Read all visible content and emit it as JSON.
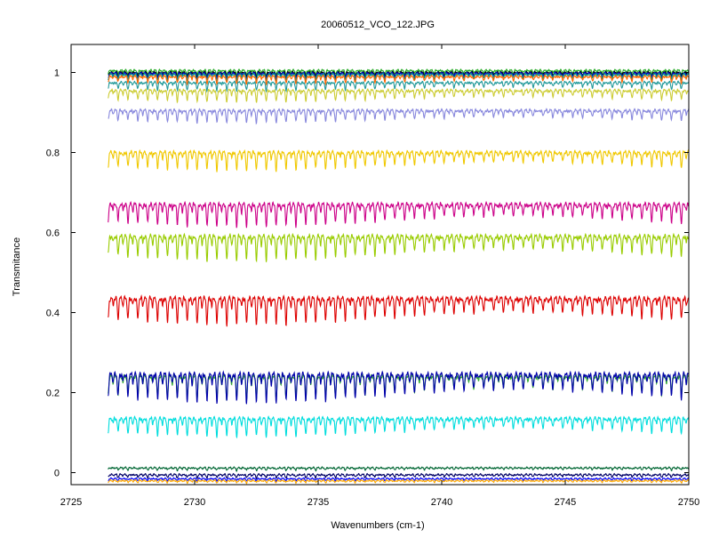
{
  "chart_data": {
    "type": "line",
    "title": "20060512_VCO_122.JPG",
    "xlabel": "Wavenumbers (cm-1)",
    "ylabel": "Transmitance",
    "xlim": [
      2725,
      2750
    ],
    "ylim": [
      -0.03,
      1.07
    ],
    "grid": false,
    "legend": "none",
    "x_ticks": [
      2725,
      2730,
      2735,
      2740,
      2745,
      2750
    ],
    "x_tick_labels": [
      "2725",
      "2730",
      "2735",
      "2740",
      "2745",
      "2750"
    ],
    "y_ticks": [
      0,
      0.2,
      0.4,
      0.6,
      0.8,
      1
    ],
    "y_tick_labels": [
      "0",
      "0.2",
      "0.4",
      "0.6",
      "0.8",
      "1"
    ],
    "x_range": [
      2726.5,
      2750
    ],
    "absorption_line_spacing_cm1": 0.4,
    "series": [
      {
        "color": "#22aa22",
        "level": 1.005,
        "depth": 0.012
      },
      {
        "color": "#000000",
        "level": 1.0,
        "depth": 0.012
      },
      {
        "color": "#0000cc",
        "level": 0.998,
        "depth": 0.014
      },
      {
        "color": "#009988",
        "level": 0.995,
        "depth": 0.016
      },
      {
        "color": "#ff6600",
        "level": 0.99,
        "depth": 0.018
      },
      {
        "color": "#229999",
        "level": 0.975,
        "depth": 0.02
      },
      {
        "color": "#cccc33",
        "level": 0.955,
        "depth": 0.028
      },
      {
        "color": "#8888dd",
        "level": 0.905,
        "depth": 0.03
      },
      {
        "color": "#f0c800",
        "level": 0.8,
        "depth": 0.045
      },
      {
        "color": "#cc0088",
        "level": 0.67,
        "depth": 0.055
      },
      {
        "color": "#99cc00",
        "level": 0.59,
        "depth": 0.06
      },
      {
        "color": "#dd0000",
        "level": 0.435,
        "depth": 0.065
      },
      {
        "color": "#33aa33",
        "level": 0.24,
        "depth": 0.055
      },
      {
        "color": "#0000aa",
        "level": 0.245,
        "depth": 0.07
      },
      {
        "color": "#00dddd",
        "level": 0.135,
        "depth": 0.045
      },
      {
        "color": "#006633",
        "level": 0.012,
        "depth": 0.006
      },
      {
        "color": "#000066",
        "level": -0.005,
        "depth": 0.008
      },
      {
        "color": "#0000ff",
        "level": -0.015,
        "depth": 0.005
      },
      {
        "color": "#ffaa00",
        "level": -0.02,
        "depth": 0.005
      }
    ]
  }
}
